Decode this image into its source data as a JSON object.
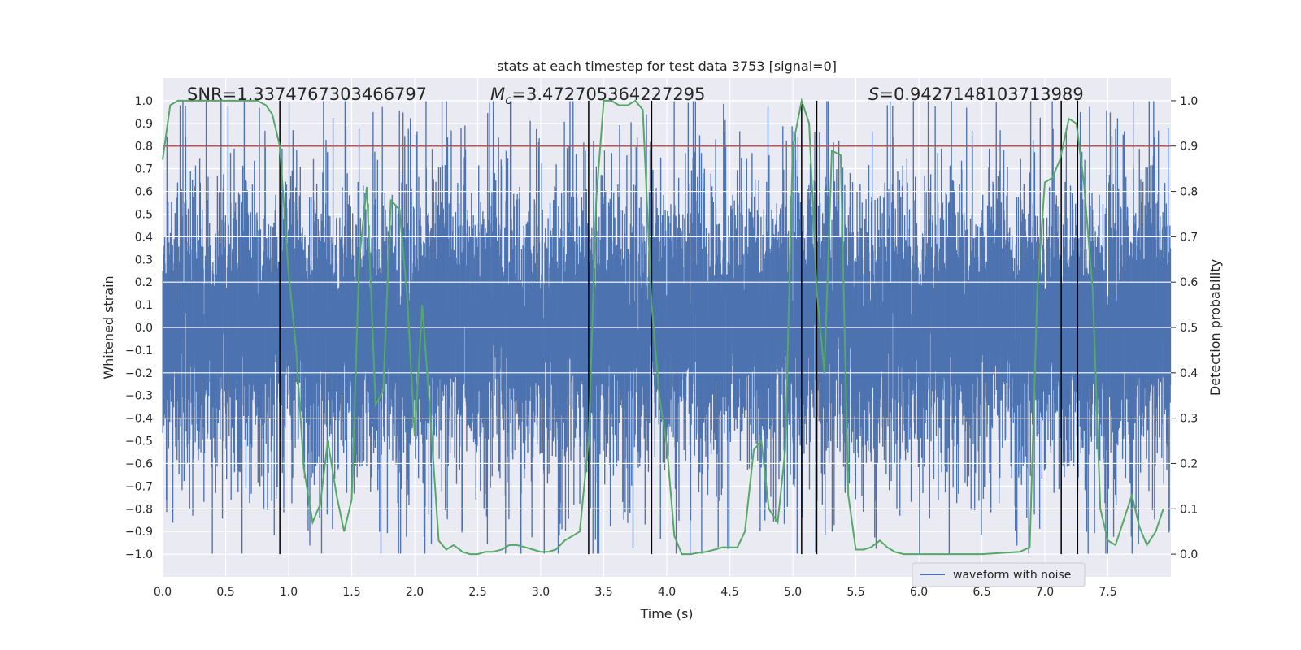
{
  "chart_data": {
    "type": "line",
    "title": "stats at each timestep for test data 3753 [signal=0]",
    "xlabel": "Time (s)",
    "ylabel": "Whitened strain",
    "y2label": "Detection probability",
    "xlim": [
      0.0,
      8.0
    ],
    "ylim": [
      -1.1,
      1.1
    ],
    "y2lim": [
      -0.05,
      1.05
    ],
    "xticks": [
      "0.0",
      "0.5",
      "1.0",
      "1.5",
      "2.0",
      "2.5",
      "3.0",
      "3.5",
      "4.0",
      "4.5",
      "5.0",
      "5.5",
      "6.0",
      "6.5",
      "7.0",
      "7.5"
    ],
    "yticks": [
      "1.0",
      "0.9",
      "0.8",
      "0.7",
      "0.6",
      "0.5",
      "0.4",
      "0.3",
      "0.2",
      "0.1",
      "0.0",
      "−0.1",
      "−0.2",
      "−0.3",
      "−0.4",
      "−0.5",
      "−0.6",
      "−0.7",
      "−0.8",
      "−0.9",
      "−1.0"
    ],
    "y2ticks": [
      "1.0",
      "0.9",
      "0.8",
      "0.7",
      "0.6",
      "0.5",
      "0.4",
      "0.3",
      "0.2",
      "0.1",
      "0.0"
    ],
    "stats": {
      "snr_label": "SNR=1.3374767303466797",
      "mc_symbol": "M",
      "mc_sub": "c",
      "mc_value": "=3.472705364227295",
      "s_symbol": "S",
      "s_value": "=0.9427148103713989"
    },
    "threshold": {
      "value": 0.9,
      "axis": "y2",
      "color": "#c44e52"
    },
    "event_lines": [
      0.93,
      3.38,
      3.88,
      5.07,
      5.19,
      7.13,
      7.26
    ],
    "legend": {
      "label": "waveform with noise",
      "location": "lower right"
    },
    "series": [
      {
        "name": "waveform with noise",
        "axis": "y",
        "color": "#4c72b0",
        "envelope": 0.5,
        "sample_rate": 2048
      },
      {
        "name": "detection probability",
        "axis": "y2",
        "color": "#55a868",
        "x": [
          0.0,
          0.06,
          0.12,
          0.2,
          0.3,
          0.45,
          0.6,
          0.75,
          0.82,
          0.87,
          0.93,
          1.0,
          1.06,
          1.12,
          1.19,
          1.25,
          1.31,
          1.38,
          1.44,
          1.5,
          1.56,
          1.62,
          1.69,
          1.75,
          1.81,
          1.88,
          1.94,
          2.0,
          2.06,
          2.12,
          2.19,
          2.25,
          2.31,
          2.38,
          2.44,
          2.5,
          2.56,
          2.62,
          2.69,
          2.75,
          2.81,
          2.88,
          2.94,
          3.0,
          3.06,
          3.12,
          3.19,
          3.25,
          3.31,
          3.38,
          3.44,
          3.5,
          3.56,
          3.62,
          3.69,
          3.75,
          3.81,
          3.88,
          3.94,
          4.0,
          4.06,
          4.12,
          4.19,
          4.25,
          4.31,
          4.38,
          4.44,
          4.5,
          4.56,
          4.62,
          4.69,
          4.75,
          4.81,
          4.88,
          4.94,
          5.0,
          5.07,
          5.13,
          5.19,
          5.25,
          5.31,
          5.38,
          5.44,
          5.5,
          5.56,
          5.62,
          5.69,
          5.75,
          5.81,
          5.88,
          5.94,
          6.0,
          6.5,
          6.8,
          6.88,
          6.94,
          7.0,
          7.06,
          7.12,
          7.19,
          7.25,
          7.31,
          7.38,
          7.44,
          7.5,
          7.56,
          7.62,
          7.69,
          7.75,
          7.81,
          7.88,
          7.94
        ],
        "values": [
          0.87,
          0.99,
          1.0,
          1.0,
          1.0,
          1.0,
          1.0,
          1.0,
          0.99,
          0.97,
          0.9,
          0.62,
          0.45,
          0.19,
          0.07,
          0.11,
          0.25,
          0.13,
          0.05,
          0.12,
          0.65,
          0.81,
          0.33,
          0.36,
          0.78,
          0.76,
          0.57,
          0.26,
          0.55,
          0.32,
          0.03,
          0.01,
          0.02,
          0.005,
          0.0,
          0.0,
          0.005,
          0.005,
          0.01,
          0.02,
          0.02,
          0.015,
          0.01,
          0.005,
          0.005,
          0.01,
          0.03,
          0.04,
          0.05,
          0.25,
          0.78,
          1.0,
          1.0,
          0.99,
          0.99,
          1.0,
          0.98,
          0.55,
          0.35,
          0.24,
          0.04,
          0.0,
          0.0,
          0.003,
          0.005,
          0.01,
          0.015,
          0.015,
          0.015,
          0.05,
          0.23,
          0.25,
          0.1,
          0.07,
          0.23,
          0.9,
          1.0,
          0.95,
          0.58,
          0.4,
          0.89,
          0.88,
          0.13,
          0.01,
          0.01,
          0.015,
          0.03,
          0.015,
          0.005,
          0.0,
          0.0,
          0.0,
          0.0,
          0.005,
          0.015,
          0.58,
          0.82,
          0.83,
          0.87,
          0.96,
          0.95,
          0.82,
          0.58,
          0.1,
          0.03,
          0.02,
          0.07,
          0.13,
          0.06,
          0.02,
          0.05,
          0.1
        ]
      }
    ]
  }
}
